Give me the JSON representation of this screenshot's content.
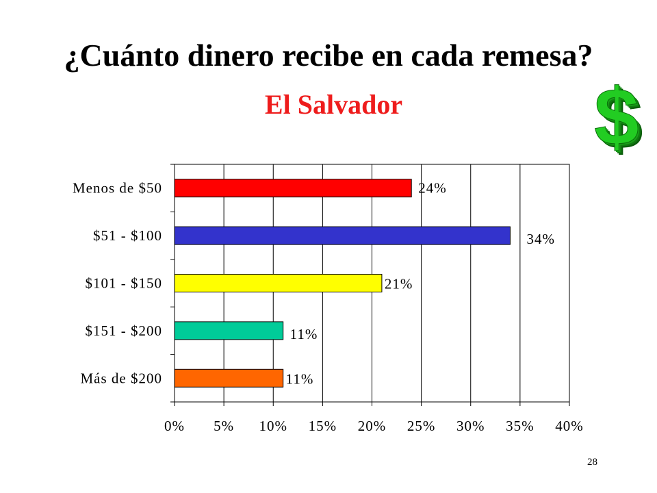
{
  "slide": {
    "title": "¿Cuánto dinero recibe en cada remesa?",
    "subtitle": "El Salvador",
    "subtitle_color": "#ee1c1c",
    "page_number": "28",
    "decoration": {
      "icon": "dollar-sign-icon",
      "glyph": "$",
      "color": "#22cc22"
    }
  },
  "chart_data": {
    "type": "bar",
    "orientation": "horizontal",
    "categories": [
      "Menos de $50",
      "$51 - $100",
      "$101 - $150",
      "$151 - $200",
      "Más de $200"
    ],
    "values": [
      24,
      34,
      21,
      11,
      11
    ],
    "value_labels": [
      "24%",
      "34%",
      "21%",
      "11%",
      "11%"
    ],
    "bar_colors": [
      "#ff0000",
      "#3333cc",
      "#ffff00",
      "#00cc99",
      "#ff6600"
    ],
    "xlim": [
      0,
      40
    ],
    "x_ticks": [
      0,
      5,
      10,
      15,
      20,
      25,
      30,
      35,
      40
    ],
    "x_tick_labels": [
      "0%",
      "5%",
      "10%",
      "15%",
      "20%",
      "25%",
      "30%",
      "35%",
      "40%"
    ],
    "grid": "vertical",
    "legend": "none",
    "title": "",
    "xlabel": "",
    "ylabel": ""
  }
}
